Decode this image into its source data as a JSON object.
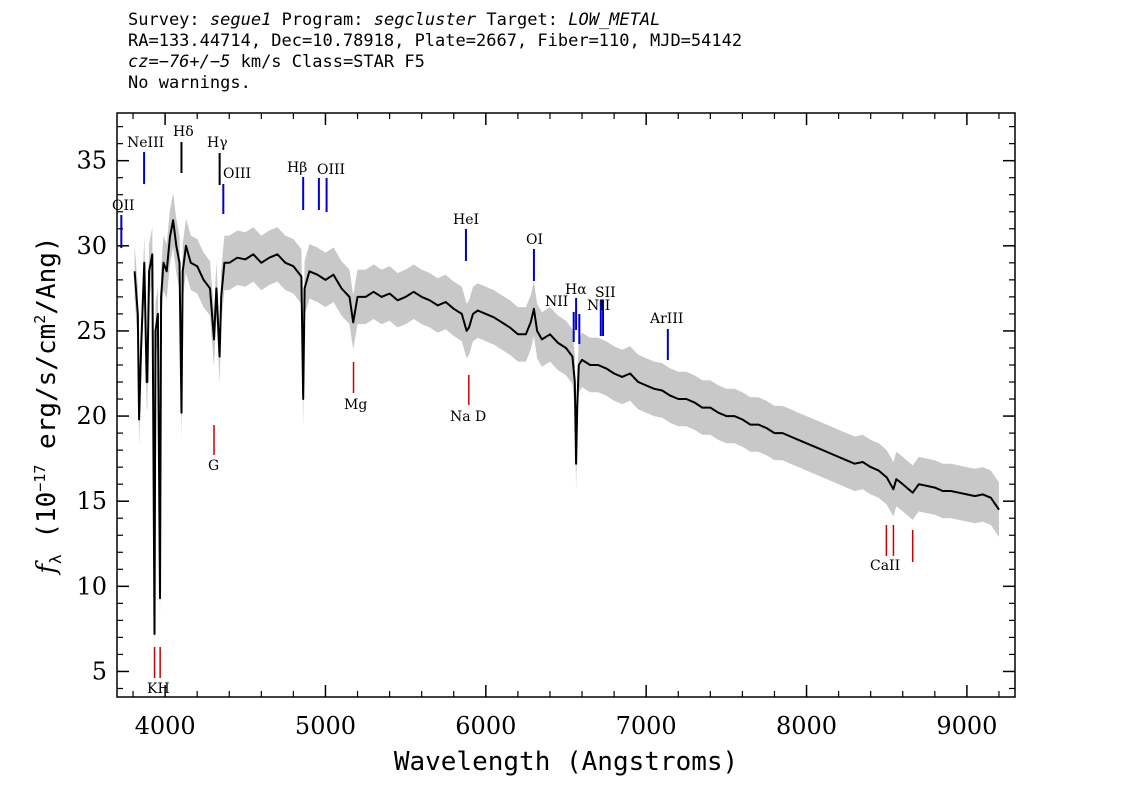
{
  "header": {
    "survey_label": "Survey:",
    "survey": "segue1",
    "program_label": "Program:",
    "program": "segcluster",
    "target_label": "Target:",
    "target": "LOW_METAL",
    "line2": "RA=133.44714, Dec=10.78918, Plate=2667, Fiber=110, MJD=54142",
    "line3_cz": "cz=−76+/−5",
    "line3_rest": " km/s Class=STAR F5",
    "line4": "No warnings."
  },
  "chart_data": {
    "type": "line",
    "title": "",
    "xlabel": "Wavelength (Angstroms)",
    "ylabel_main": "f",
    "ylabel_sub": "λ",
    "ylabel_text": " (10",
    "ylabel_exp": "−17",
    "ylabel_rest": " erg/s/cm",
    "ylabel_exp2": "2",
    "ylabel_end": "/Ang)",
    "xlim": [
      3700,
      9300
    ],
    "ylim": [
      3.5,
      37.8
    ],
    "xticks": [
      4000,
      5000,
      6000,
      7000,
      8000,
      9000
    ],
    "yticks": [
      5,
      10,
      15,
      20,
      25,
      30,
      35
    ],
    "xtick_labels": [
      "4000",
      "5000",
      "6000",
      "7000",
      "8000",
      "9000"
    ],
    "ytick_labels": [
      "5",
      "10",
      "15",
      "20",
      "25",
      "30",
      "35"
    ],
    "grid": false,
    "series": [
      {
        "color": "#000000",
        "points": [
          [
            3810,
            28.5
          ],
          [
            3830,
            26.0
          ],
          [
            3838,
            19.8
          ],
          [
            3850,
            24.0
          ],
          [
            3870,
            29.0
          ],
          [
            3885,
            22.0
          ],
          [
            3889,
            22.0
          ],
          [
            3900,
            28.5
          ],
          [
            3920,
            29.5
          ],
          [
            3934,
            7.2
          ],
          [
            3940,
            25.0
          ],
          [
            3955,
            26.0
          ],
          [
            3968,
            9.3
          ],
          [
            3975,
            27.0
          ],
          [
            3990,
            29.0
          ],
          [
            4010,
            28.5
          ],
          [
            4030,
            30.5
          ],
          [
            4050,
            31.5
          ],
          [
            4070,
            30.0
          ],
          [
            4090,
            29.0
          ],
          [
            4102,
            20.2
          ],
          [
            4110,
            28.5
          ],
          [
            4130,
            30.0
          ],
          [
            4160,
            29.0
          ],
          [
            4200,
            28.8
          ],
          [
            4240,
            28.0
          ],
          [
            4280,
            27.5
          ],
          [
            4305,
            24.5
          ],
          [
            4320,
            27.5
          ],
          [
            4340,
            23.5
          ],
          [
            4350,
            27.0
          ],
          [
            4370,
            29.0
          ],
          [
            4400,
            29.0
          ],
          [
            4450,
            29.3
          ],
          [
            4500,
            29.2
          ],
          [
            4550,
            29.5
          ],
          [
            4600,
            29.0
          ],
          [
            4650,
            29.3
          ],
          [
            4700,
            29.5
          ],
          [
            4750,
            29.0
          ],
          [
            4800,
            28.8
          ],
          [
            4850,
            28.2
          ],
          [
            4861,
            21.0
          ],
          [
            4870,
            27.5
          ],
          [
            4900,
            28.5
          ],
          [
            4950,
            28.3
          ],
          [
            5000,
            28.0
          ],
          [
            5050,
            28.3
          ],
          [
            5100,
            27.5
          ],
          [
            5150,
            27.0
          ],
          [
            5173,
            25.5
          ],
          [
            5200,
            27.0
          ],
          [
            5250,
            27.0
          ],
          [
            5300,
            27.3
          ],
          [
            5350,
            27.0
          ],
          [
            5400,
            27.2
          ],
          [
            5450,
            26.8
          ],
          [
            5500,
            27.0
          ],
          [
            5550,
            27.3
          ],
          [
            5600,
            27.0
          ],
          [
            5650,
            26.8
          ],
          [
            5700,
            26.5
          ],
          [
            5750,
            26.7
          ],
          [
            5800,
            26.3
          ],
          [
            5850,
            26.0
          ],
          [
            5880,
            25.0
          ],
          [
            5895,
            25.2
          ],
          [
            5920,
            26.0
          ],
          [
            5950,
            26.2
          ],
          [
            6000,
            26.0
          ],
          [
            6050,
            25.8
          ],
          [
            6100,
            25.5
          ],
          [
            6150,
            25.2
          ],
          [
            6200,
            24.8
          ],
          [
            6250,
            24.8
          ],
          [
            6280,
            25.5
          ],
          [
            6300,
            26.3
          ],
          [
            6320,
            25.0
          ],
          [
            6350,
            24.5
          ],
          [
            6400,
            24.8
          ],
          [
            6450,
            24.3
          ],
          [
            6500,
            24.0
          ],
          [
            6540,
            23.5
          ],
          [
            6555,
            22.0
          ],
          [
            6563,
            17.2
          ],
          [
            6570,
            20.5
          ],
          [
            6580,
            23.0
          ],
          [
            6600,
            23.3
          ],
          [
            6650,
            23.0
          ],
          [
            6700,
            23.0
          ],
          [
            6750,
            22.8
          ],
          [
            6800,
            22.5
          ],
          [
            6850,
            22.3
          ],
          [
            6900,
            22.5
          ],
          [
            6950,
            22.0
          ],
          [
            7000,
            21.8
          ],
          [
            7050,
            21.6
          ],
          [
            7100,
            21.5
          ],
          [
            7150,
            21.2
          ],
          [
            7200,
            21.0
          ],
          [
            7250,
            21.0
          ],
          [
            7300,
            20.8
          ],
          [
            7350,
            20.5
          ],
          [
            7400,
            20.5
          ],
          [
            7450,
            20.2
          ],
          [
            7500,
            20.0
          ],
          [
            7550,
            20.0
          ],
          [
            7600,
            19.8
          ],
          [
            7650,
            19.5
          ],
          [
            7700,
            19.5
          ],
          [
            7750,
            19.3
          ],
          [
            7800,
            19.0
          ],
          [
            7850,
            19.0
          ],
          [
            7900,
            18.8
          ],
          [
            7950,
            18.6
          ],
          [
            8000,
            18.4
          ],
          [
            8050,
            18.2
          ],
          [
            8100,
            18.0
          ],
          [
            8150,
            17.8
          ],
          [
            8200,
            17.6
          ],
          [
            8250,
            17.4
          ],
          [
            8300,
            17.2
          ],
          [
            8350,
            17.3
          ],
          [
            8400,
            17.0
          ],
          [
            8450,
            16.8
          ],
          [
            8500,
            16.4
          ],
          [
            8542,
            15.7
          ],
          [
            8560,
            16.3
          ],
          [
            8600,
            16.0
          ],
          [
            8662,
            15.5
          ],
          [
            8700,
            16.0
          ],
          [
            8750,
            15.9
          ],
          [
            8800,
            15.8
          ],
          [
            8850,
            15.6
          ],
          [
            8900,
            15.6
          ],
          [
            8950,
            15.5
          ],
          [
            9000,
            15.4
          ],
          [
            9050,
            15.3
          ],
          [
            9100,
            15.4
          ],
          [
            9150,
            15.2
          ],
          [
            9200,
            14.5
          ]
        ]
      }
    ],
    "error_band": {
      "color": "#c8c8c8",
      "halfwidth": 1.6
    },
    "emission_lines": [
      {
        "label": "OII",
        "wavelength": 3727,
        "color": "#0000cc"
      },
      {
        "label": "NeIII",
        "wavelength": 3869,
        "color": "#0000cc"
      },
      {
        "label": "Hδ",
        "wavelength": 4102,
        "color": "#000000"
      },
      {
        "label": "Hγ",
        "wavelength": 4340,
        "color": "#000000"
      },
      {
        "label": "OIII",
        "wavelength": 4363,
        "color": "#0000cc"
      },
      {
        "label": "Hβ",
        "wavelength": 4861,
        "color": "#0000cc"
      },
      {
        "label": "OIII",
        "wavelength": 4959,
        "color": "#0000cc"
      },
      {
        "label": "OIII",
        "wavelength": 5007,
        "color": "#0000cc"
      },
      {
        "label": "HeI",
        "wavelength": 5876,
        "color": "#0000cc"
      },
      {
        "label": "OI",
        "wavelength": 6300,
        "color": "#0000cc"
      },
      {
        "label": "NII",
        "wavelength": 6548,
        "color": "#0000cc"
      },
      {
        "label": "Hα",
        "wavelength": 6563,
        "color": "#0000cc"
      },
      {
        "label": "NII",
        "wavelength": 6583,
        "color": "#0000cc"
      },
      {
        "label": "SII",
        "wavelength": 6717,
        "color": "#0000cc"
      },
      {
        "label": "SII",
        "wavelength": 6731,
        "color": "#0000cc"
      },
      {
        "label": "ArIII",
        "wavelength": 7135,
        "color": "#0000cc"
      }
    ],
    "absorption_lines": [
      {
        "label": "K",
        "wavelength": 3934,
        "color": "#cc0000"
      },
      {
        "label": "H",
        "wavelength": 3969,
        "color": "#cc0000"
      },
      {
        "label": "G",
        "wavelength": 4305,
        "color": "#cc0000"
      },
      {
        "label": "Mg",
        "wavelength": 5175,
        "color": "#cc0000"
      },
      {
        "label": "Na",
        "wavelength": 5894,
        "color": "#cc0000"
      },
      {
        "label": "CaII",
        "wavelength": 8498,
        "color": "#cc0000"
      },
      {
        "label": "CaII",
        "wavelength": 8542,
        "color": "#cc0000"
      },
      {
        "label": "CaII",
        "wavelength": 8662,
        "color": "#cc0000"
      }
    ],
    "line_label_texts": {
      "oii": "OII",
      "neiii": "NeIII",
      "hdelta": "Hδ",
      "hgamma": "Hγ",
      "oiii1": "OIII",
      "hbeta": "Hβ",
      "oiii2": "OIII",
      "hei": "HeI",
      "oi": "OI",
      "nii1": "NII",
      "halpha": "Hα",
      "nii2": "NII",
      "sii": "SII",
      "ariii": "ArIII",
      "kh": "KH",
      "g": "G",
      "mg": "Mg",
      "nad": "Na D",
      "caii": "CaII"
    }
  }
}
